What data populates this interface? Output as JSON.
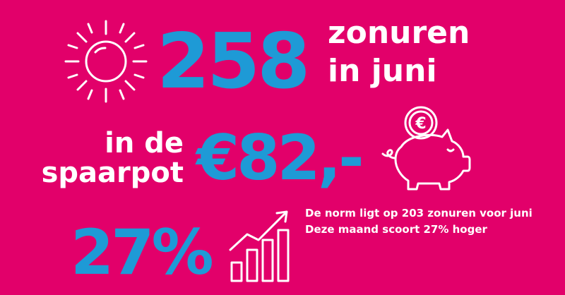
{
  "colors": {
    "background": "#E2006A",
    "accent": "#1E9AD6",
    "text": "#FFFFFF"
  },
  "sun_block": {
    "icon": "sun-icon",
    "value": "258",
    "label_line1": "zonuren",
    "label_line2": "in juni"
  },
  "savings_block": {
    "label_line1": "in de",
    "label_line2": "spaarpot",
    "value": "€82,-",
    "icon": "piggy-bank-icon",
    "coin_symbol": "€"
  },
  "percent_block": {
    "value": "27%",
    "icon": "growth-chart-icon",
    "note_line1": "De norm ligt op 203 zonuren voor juni",
    "note_line2": "Deze maand scoort 27% hoger"
  }
}
